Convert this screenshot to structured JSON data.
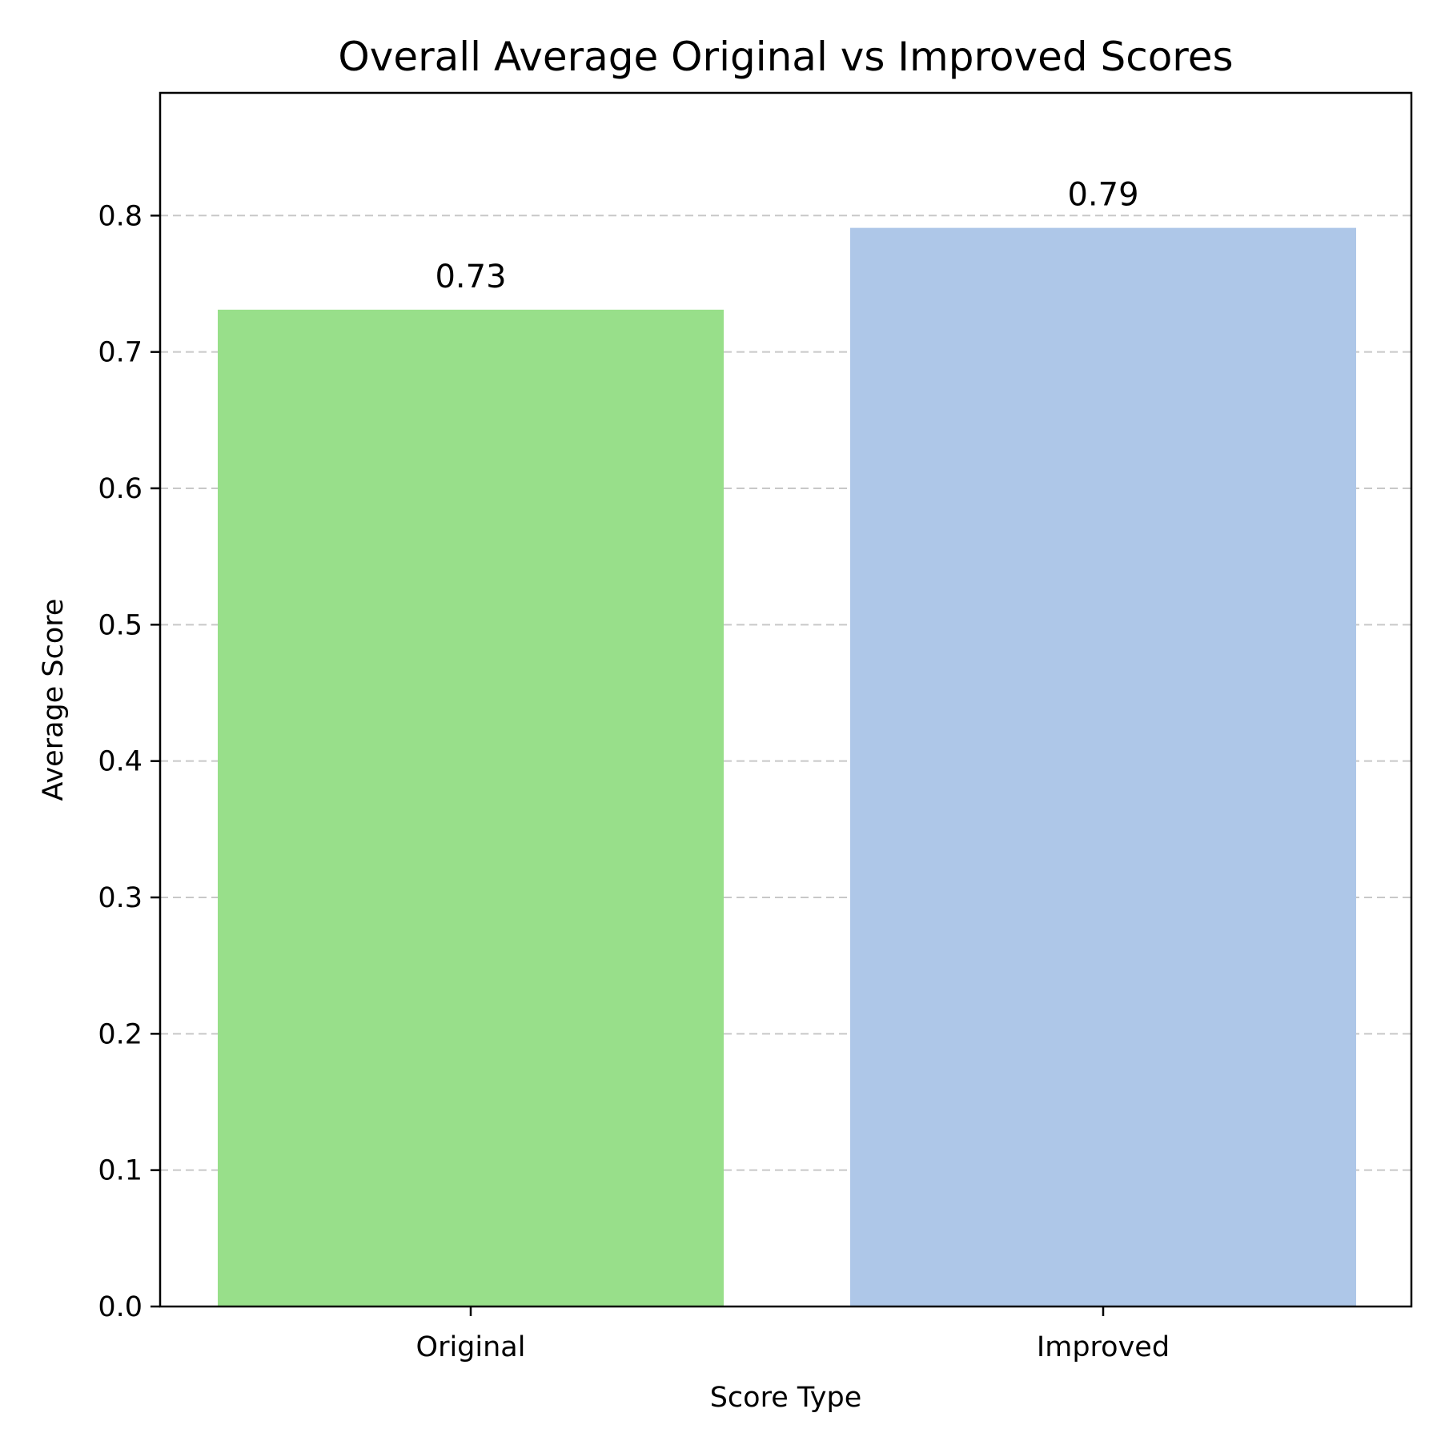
{
  "chart_data": {
    "type": "bar",
    "title": "Overall Average Original vs Improved Scores",
    "xlabel": "Score Type",
    "ylabel": "Average Score",
    "categories": [
      "Original",
      "Improved"
    ],
    "values": [
      0.731,
      0.791
    ],
    "value_labels": [
      "0.73",
      "0.79"
    ],
    "bar_colors": [
      "#98df8a",
      "#aec7e8"
    ],
    "ylim": [
      0,
      0.89
    ],
    "yticks": [
      0.0,
      0.1,
      0.2,
      0.3,
      0.4,
      0.5,
      0.6,
      0.7,
      0.8
    ],
    "ytick_labels": [
      "0.0",
      "0.1",
      "0.2",
      "0.3",
      "0.4",
      "0.5",
      "0.6",
      "0.7",
      "0.8"
    ],
    "grid": {
      "axis": "y",
      "style": "dashed",
      "color": "#c8c8c8"
    },
    "legend": "none"
  }
}
